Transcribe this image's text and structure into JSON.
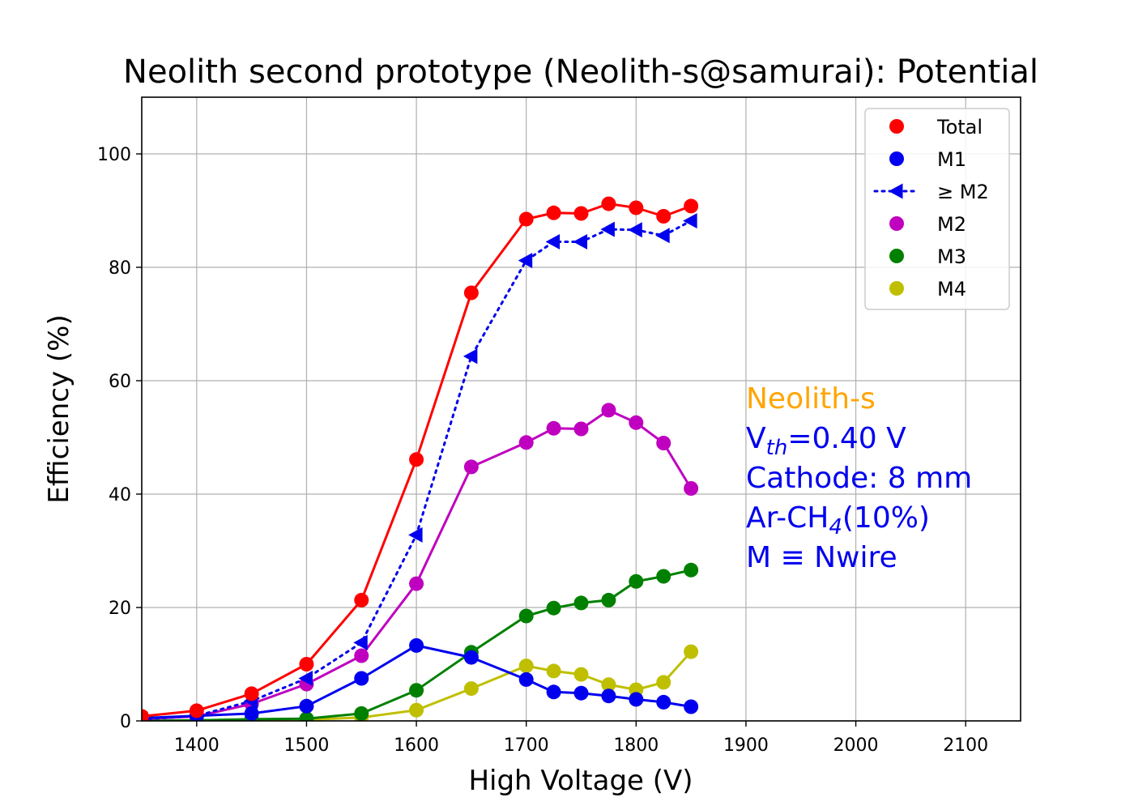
{
  "chart_data": {
    "type": "line",
    "title": "Neolith second prototype (Neolith-s@samurai): Potential",
    "xlabel": "High Voltage (V)",
    "ylabel": "Efficiency (%)",
    "xlim": [
      1350,
      2150
    ],
    "ylim": [
      0,
      110
    ],
    "xticks": [
      1400,
      1500,
      1600,
      1700,
      1800,
      1900,
      2000,
      2100
    ],
    "yticks": [
      0,
      20,
      40,
      60,
      80,
      100
    ],
    "grid": true,
    "legend_position": "top-right",
    "x": [
      1350,
      1400,
      1450,
      1500,
      1550,
      1600,
      1650,
      1700,
      1725,
      1750,
      1775,
      1800,
      1825,
      1850
    ],
    "series": [
      {
        "name": "Total",
        "color": "#ff0000",
        "marker": "circle",
        "line": "solid",
        "values": [
          0.8,
          1.8,
          4.8,
          10.0,
          21.3,
          46.1,
          75.5,
          88.5,
          89.6,
          89.5,
          91.2,
          90.5,
          89.0,
          90.8
        ]
      },
      {
        "name": "M1",
        "color": "#0000ee",
        "marker": "circle",
        "line": "solid",
        "values": [
          0.5,
          0.9,
          1.3,
          2.6,
          7.5,
          13.3,
          11.2,
          7.3,
          5.1,
          4.9,
          4.4,
          3.8,
          3.3,
          2.5
        ]
      },
      {
        "name": "≥ M2",
        "color": "#0000ee",
        "marker": "triangle-left",
        "line": "dotted",
        "values": [
          0.3,
          0.9,
          3.5,
          7.5,
          13.8,
          32.8,
          64.3,
          81.2,
          84.5,
          84.5,
          86.7,
          86.6,
          85.6,
          88.2
        ]
      },
      {
        "name": "M2",
        "color": "#bf00bf",
        "marker": "circle",
        "line": "solid",
        "values": [
          0.3,
          0.8,
          3.0,
          6.5,
          11.5,
          24.2,
          44.8,
          49.1,
          51.6,
          51.5,
          54.8,
          52.6,
          49.0,
          41.0
        ]
      },
      {
        "name": "M3",
        "color": "#008000",
        "marker": "circle",
        "line": "solid",
        "values": [
          0.0,
          0.1,
          0.3,
          0.4,
          1.3,
          5.4,
          12.1,
          18.5,
          19.9,
          20.8,
          21.3,
          24.6,
          25.5,
          26.6
        ]
      },
      {
        "name": "M4",
        "color": "#bfbf00",
        "marker": "circle",
        "line": "solid",
        "values": [
          0.0,
          0.0,
          0.1,
          0.2,
          0.6,
          1.9,
          5.7,
          9.7,
          8.8,
          8.2,
          6.4,
          5.5,
          6.8,
          12.2
        ]
      }
    ],
    "annotations": [
      {
        "text": "Neolith-s",
        "color": "#ffa500"
      },
      {
        "text_main": "V",
        "text_sub": "th",
        "text_rest": "=0.40 V",
        "color": "#0000ee"
      },
      {
        "text": "Cathode: 8 mm",
        "color": "#0000ee"
      },
      {
        "text_main": "Ar-CH",
        "text_sub": "4",
        "text_rest": "(10%)",
        "color": "#0000ee"
      },
      {
        "text": "M ≡ Nwire",
        "color": "#0000ee"
      }
    ]
  }
}
